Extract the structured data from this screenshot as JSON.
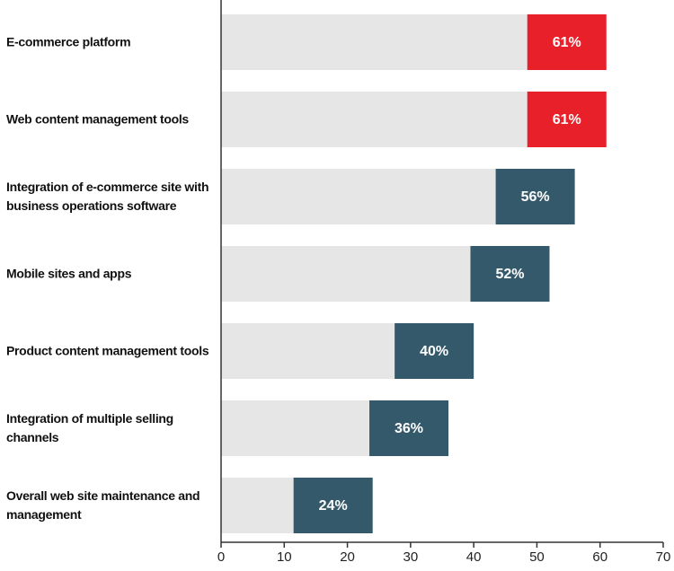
{
  "chart_data": {
    "type": "bar",
    "orientation": "horizontal",
    "categories": [
      "E-commerce platform",
      "Web content management tools",
      "Integration of e-commerce site with business operations software",
      "Mobile sites and apps",
      "Product content management tools",
      "Integration of multiple selling channels",
      "Overall web site maintenance and management"
    ],
    "values": [
      61,
      61,
      56,
      52,
      40,
      36,
      24
    ],
    "value_labels": [
      "61%",
      "61%",
      "56%",
      "52%",
      "40%",
      "36%",
      "24%"
    ],
    "colors": [
      "#e8202a",
      "#e8202a",
      "#34596b",
      "#34596b",
      "#34596b",
      "#34596b",
      "#34596b"
    ],
    "bar_background": "#e6e6e6",
    "xlim": [
      0,
      70
    ],
    "xticks": [
      0,
      10,
      20,
      30,
      40,
      50,
      60,
      70
    ]
  }
}
